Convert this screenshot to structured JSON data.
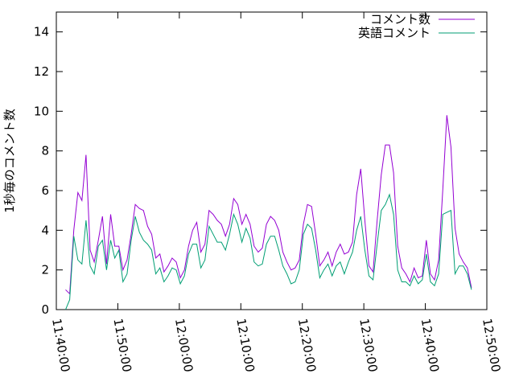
{
  "chart_data": {
    "type": "line",
    "ylabel": "1秒毎のコメント数",
    "xlim": [
      "11:40:00",
      "12:50:00"
    ],
    "xticks": [
      "11:40:00",
      "11:50:00",
      "12:00:00",
      "12:10:00",
      "12:20:00",
      "12:30:00",
      "12:40:00",
      "12:50:00"
    ],
    "ylim": [
      0,
      15
    ],
    "yticks": [
      0,
      2,
      4,
      6,
      8,
      10,
      12,
      14
    ],
    "legend": "top-right",
    "x": [
      "11:41:30",
      "11:42:10",
      "11:42:50",
      "11:43:30",
      "11:44:10",
      "11:44:50",
      "11:45:30",
      "11:46:10",
      "11:46:50",
      "11:47:30",
      "11:48:10",
      "11:48:50",
      "11:49:30",
      "11:50:10",
      "11:50:50",
      "11:51:30",
      "11:52:10",
      "11:52:50",
      "11:53:30",
      "11:54:10",
      "11:54:50",
      "11:55:30",
      "11:56:10",
      "11:56:50",
      "11:57:30",
      "11:58:10",
      "11:58:50",
      "11:59:30",
      "12:00:10",
      "12:00:50",
      "12:01:30",
      "12:02:10",
      "12:02:50",
      "12:03:30",
      "12:04:10",
      "12:04:50",
      "12:05:30",
      "12:06:10",
      "12:06:50",
      "12:07:30",
      "12:08:10",
      "12:08:50",
      "12:09:30",
      "12:10:10",
      "12:10:50",
      "12:11:30",
      "12:12:10",
      "12:12:50",
      "12:13:30",
      "12:14:10",
      "12:14:50",
      "12:15:30",
      "12:16:10",
      "12:16:50",
      "12:17:30",
      "12:18:10",
      "12:18:50",
      "12:19:30",
      "12:20:10",
      "12:20:50",
      "12:21:30",
      "12:22:10",
      "12:22:50",
      "12:23:30",
      "12:24:10",
      "12:24:50",
      "12:25:30",
      "12:26:10",
      "12:26:50",
      "12:27:30",
      "12:28:10",
      "12:28:50",
      "12:29:30",
      "12:30:10",
      "12:30:50",
      "12:31:30",
      "12:32:10",
      "12:32:50",
      "12:33:30",
      "12:34:10",
      "12:34:50",
      "12:35:30",
      "12:36:10",
      "12:36:50",
      "12:37:30",
      "12:38:10",
      "12:38:50",
      "12:39:30",
      "12:40:10",
      "12:40:50",
      "12:41:30",
      "12:42:10",
      "12:42:50",
      "12:43:30",
      "12:44:10",
      "12:44:50",
      "12:45:30",
      "12:46:10",
      "12:46:50",
      "12:47:30"
    ],
    "series": [
      {
        "name": "コメント数",
        "color": "#9400d3",
        "values": [
          1.0,
          0.8,
          4.0,
          5.9,
          5.5,
          7.8,
          3.0,
          2.4,
          3.5,
          4.7,
          2.3,
          4.8,
          3.2,
          3.2,
          2.0,
          2.5,
          3.8,
          5.3,
          5.1,
          5.0,
          4.2,
          3.8,
          2.6,
          2.8,
          1.9,
          2.2,
          2.6,
          2.4,
          1.6,
          2.0,
          3.2,
          4.0,
          4.4,
          2.9,
          3.3,
          5.0,
          4.8,
          4.5,
          4.3,
          3.7,
          4.3,
          5.6,
          5.3,
          4.3,
          4.8,
          4.3,
          3.2,
          2.9,
          3.1,
          4.3,
          4.7,
          4.5,
          4.0,
          2.9,
          2.4,
          2.0,
          2.1,
          2.5,
          4.3,
          5.3,
          5.2,
          3.8,
          2.2,
          2.5,
          2.9,
          2.2,
          2.9,
          3.3,
          2.8,
          2.9,
          3.4,
          5.8,
          7.1,
          4.5,
          2.2,
          1.9,
          4.5,
          6.8,
          8.3,
          8.3,
          6.9,
          3.2,
          2.1,
          1.8,
          1.4,
          2.1,
          1.6,
          1.7,
          3.5,
          1.8,
          1.5,
          2.5,
          6.0,
          9.8,
          8.2,
          4.1,
          2.8,
          2.4,
          2.1,
          1.1
        ]
      },
      {
        "name": "英語コメント",
        "color": "#009e73",
        "values": [
          0,
          0.5,
          3.7,
          2.5,
          2.3,
          4.5,
          2.2,
          1.8,
          3.2,
          3.5,
          2.0,
          3.5,
          2.6,
          3.0,
          1.4,
          1.8,
          3.5,
          4.7,
          3.9,
          3.5,
          3.3,
          3.0,
          1.8,
          2.1,
          1.4,
          1.7,
          2.1,
          2.0,
          1.3,
          1.7,
          2.8,
          3.3,
          3.3,
          2.1,
          2.5,
          4.2,
          3.8,
          3.4,
          3.4,
          3.0,
          3.8,
          4.8,
          4.3,
          3.4,
          4.1,
          3.6,
          2.4,
          2.2,
          2.3,
          3.3,
          3.7,
          3.7,
          3.0,
          2.2,
          1.8,
          1.3,
          1.4,
          2.0,
          3.8,
          4.3,
          4.1,
          3.0,
          1.6,
          2.0,
          2.3,
          1.7,
          2.2,
          2.4,
          1.8,
          2.4,
          2.9,
          4.0,
          4.7,
          3.0,
          1.7,
          1.5,
          3.3,
          5.0,
          5.3,
          5.8,
          4.8,
          2.0,
          1.4,
          1.4,
          1.2,
          1.7,
          1.3,
          1.5,
          2.8,
          1.4,
          1.2,
          1.8,
          4.8,
          4.9,
          5.0,
          1.8,
          2.2,
          2.2,
          1.8,
          1.0
        ]
      }
    ]
  }
}
